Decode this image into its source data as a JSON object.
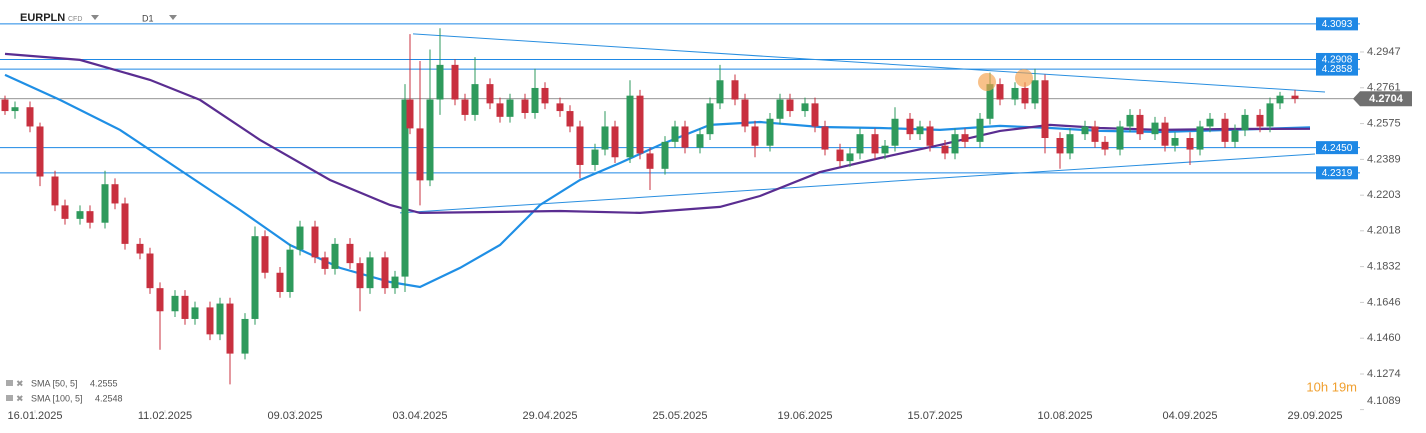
{
  "chart_data": {
    "type": "candlestick",
    "symbol": "EURPLN",
    "instrument": "CFD",
    "timeframe": "D1",
    "countdown": "10h 19m",
    "up_color": "#2e9a5c",
    "down_color": "#c8303f",
    "grid": false,
    "xlim": [
      -7,
      265
    ],
    "ylim": [
      4.1087,
      4.3217
    ],
    "xticks": [
      {
        "value": 0,
        "label": "16.01.2025"
      },
      {
        "value": 26,
        "label": "11.02.2025"
      },
      {
        "value": 52,
        "label": "09.03.2025"
      },
      {
        "value": 77,
        "label": "03.04.2025"
      },
      {
        "value": 103,
        "label": "29.04.2025"
      },
      {
        "value": 129,
        "label": "25.05.2025"
      },
      {
        "value": 154,
        "label": "19.06.2025"
      },
      {
        "value": 180,
        "label": "15.07.2025"
      },
      {
        "value": 206,
        "label": "10.08.2025"
      },
      {
        "value": 231,
        "label": "04.09.2025"
      },
      {
        "value": 256,
        "label": "29.09.2025"
      }
    ],
    "yticks": [
      4.2947,
      {
        "value": 4.2761,
        "label": "4.2761"
      },
      4.2575,
      4.2389,
      4.2203,
      4.2018,
      4.1832,
      4.1646,
      {
        "value": 4.146,
        "label": "4.1460"
      },
      4.1274,
      4.1089
    ],
    "levels": [
      4.3093,
      4.2908,
      4.2858,
      {
        "value": 4.245,
        "label": "4.2450"
      },
      4.2319
    ],
    "level_color": "#1e88e5",
    "current_price": 4.2704,
    "current_color": "#707070",
    "trendlines": [
      {
        "x": [
          75.6,
          258
        ],
        "values": [
          4.3041,
          4.2739
        ]
      },
      {
        "x": [
          73,
          256
        ],
        "values": [
          4.2111,
          4.2417
        ]
      }
    ],
    "highlights": [
      {
        "x": 190.4,
        "value": 4.2791
      },
      {
        "x": 197.8,
        "value": 4.2812
      }
    ],
    "highlight_color": "#f5a04a",
    "x": [
      -6,
      -4,
      -1,
      1,
      4,
      6,
      9,
      11,
      14,
      16,
      18,
      21,
      23,
      25,
      28,
      30,
      32,
      35,
      37,
      39,
      42,
      44,
      46,
      49,
      51,
      53,
      56,
      58,
      60,
      63,
      65,
      67,
      70,
      72,
      74,
      75,
      77,
      79,
      81,
      84,
      86,
      88,
      91,
      93,
      95,
      98,
      100,
      102,
      105,
      107,
      109,
      112,
      114,
      116,
      119,
      121,
      123,
      126,
      128,
      130,
      133,
      135,
      137,
      140,
      142,
      144,
      147,
      149,
      151,
      154,
      156,
      158,
      161,
      163,
      165,
      168,
      170,
      172,
      175,
      177,
      179,
      182,
      184,
      186,
      189,
      191,
      193,
      196,
      198,
      200,
      202,
      205,
      207,
      210,
      212,
      214,
      217,
      219,
      221,
      224,
      226,
      228,
      231,
      233,
      235,
      238,
      240,
      242,
      245,
      247,
      249,
      252
    ],
    "open": [
      4.27,
      4.264,
      4.266,
      4.256,
      4.23,
      4.215,
      4.208,
      4.212,
      4.206,
      4.226,
      4.216,
      4.195,
      4.19,
      4.172,
      4.16,
      4.168,
      4.156,
      4.162,
      4.148,
      4.164,
      4.138,
      4.156,
      4.199,
      4.18,
      4.17,
      4.192,
      4.204,
      4.188,
      4.182,
      4.195,
      4.185,
      4.172,
      4.188,
      4.172,
      4.178,
      4.27,
      4.255,
      4.228,
      4.27,
      4.288,
      4.27,
      4.262,
      4.278,
      4.268,
      4.261,
      4.27,
      4.263,
      4.276,
      4.268,
      4.264,
      4.256,
      4.236,
      4.244,
      4.256,
      4.24,
      4.272,
      4.242,
      4.234,
      4.248,
      4.256,
      4.245,
      4.252,
      4.268,
      4.28,
      4.27,
      4.256,
      4.246,
      4.26,
      4.27,
      4.264,
      4.268,
      4.256,
      4.244,
      4.238,
      4.242,
      4.252,
      4.242,
      4.246,
      4.26,
      4.252,
      4.256,
      4.246,
      4.242,
      4.252,
      4.248,
      4.26,
      4.278,
      4.27,
      4.276,
      4.268,
      4.28,
      4.25,
      4.242,
      4.252,
      4.256,
      4.248,
      4.244,
      4.256,
      4.262,
      4.252,
      4.258,
      4.246,
      4.25,
      4.244,
      4.256,
      4.26,
      4.248,
      4.254,
      4.262,
      4.256,
      4.268,
      4.272
    ],
    "high": [
      4.272,
      4.269,
      4.269,
      4.258,
      4.233,
      4.218,
      4.215,
      4.215,
      4.233,
      4.229,
      4.219,
      4.198,
      4.193,
      4.175,
      4.171,
      4.171,
      4.165,
      4.165,
      4.167,
      4.167,
      4.159,
      4.204,
      4.202,
      4.183,
      4.195,
      4.207,
      4.207,
      4.191,
      4.198,
      4.198,
      4.188,
      4.191,
      4.191,
      4.181,
      4.278,
      4.304,
      4.29,
      4.296,
      4.307,
      4.291,
      4.273,
      4.292,
      4.281,
      4.271,
      4.273,
      4.273,
      4.286,
      4.279,
      4.271,
      4.267,
      4.259,
      4.247,
      4.264,
      4.259,
      4.28,
      4.275,
      4.245,
      4.251,
      4.259,
      4.259,
      4.255,
      4.271,
      4.288,
      4.283,
      4.273,
      4.259,
      4.263,
      4.273,
      4.273,
      4.271,
      4.271,
      4.259,
      4.247,
      4.245,
      4.255,
      4.255,
      4.249,
      4.266,
      4.263,
      4.259,
      4.259,
      4.249,
      4.255,
      4.255,
      4.263,
      4.284,
      4.281,
      4.279,
      4.279,
      4.286,
      4.283,
      4.253,
      4.255,
      4.259,
      4.259,
      4.251,
      4.259,
      4.265,
      4.265,
      4.261,
      4.261,
      4.253,
      4.253,
      4.259,
      4.263,
      4.263,
      4.257,
      4.265,
      4.265,
      4.271,
      4.274,
      4.275
    ],
    "low": [
      4.262,
      4.26,
      4.253,
      4.225,
      4.212,
      4.205,
      4.205,
      4.203,
      4.203,
      4.213,
      4.192,
      4.187,
      4.169,
      4.14,
      4.157,
      4.153,
      4.153,
      4.145,
      4.145,
      4.122,
      4.135,
      4.153,
      4.177,
      4.167,
      4.167,
      4.189,
      4.185,
      4.179,
      4.179,
      4.182,
      4.16,
      4.169,
      4.169,
      4.169,
      4.17,
      4.252,
      4.215,
      4.225,
      4.262,
      4.267,
      4.259,
      4.259,
      4.265,
      4.258,
      4.258,
      4.26,
      4.26,
      4.265,
      4.261,
      4.253,
      4.229,
      4.233,
      4.241,
      4.237,
      4.237,
      4.239,
      4.223,
      4.231,
      4.245,
      4.242,
      4.242,
      4.249,
      4.265,
      4.267,
      4.253,
      4.24,
      4.243,
      4.257,
      4.261,
      4.261,
      4.253,
      4.241,
      4.235,
      4.235,
      4.239,
      4.239,
      4.239,
      4.243,
      4.249,
      4.249,
      4.243,
      4.239,
      4.239,
      4.245,
      4.245,
      4.257,
      4.267,
      4.267,
      4.265,
      4.265,
      4.242,
      4.234,
      4.239,
      4.249,
      4.245,
      4.241,
      4.241,
      4.253,
      4.249,
      4.249,
      4.243,
      4.243,
      4.236,
      4.241,
      4.253,
      4.245,
      4.245,
      4.251,
      4.253,
      4.253,
      4.265,
      4.268
    ],
    "close": [
      4.264,
      4.266,
      4.256,
      4.23,
      4.215,
      4.208,
      4.212,
      4.206,
      4.226,
      4.216,
      4.195,
      4.19,
      4.172,
      4.16,
      4.168,
      4.156,
      4.162,
      4.148,
      4.164,
      4.138,
      4.156,
      4.199,
      4.18,
      4.17,
      4.192,
      4.204,
      4.188,
      4.182,
      4.195,
      4.185,
      4.172,
      4.188,
      4.172,
      4.178,
      4.27,
      4.255,
      4.228,
      4.27,
      4.288,
      4.27,
      4.262,
      4.278,
      4.268,
      4.261,
      4.27,
      4.263,
      4.276,
      4.268,
      4.264,
      4.256,
      4.236,
      4.244,
      4.256,
      4.24,
      4.272,
      4.242,
      4.234,
      4.248,
      4.256,
      4.245,
      4.252,
      4.268,
      4.28,
      4.27,
      4.256,
      4.246,
      4.26,
      4.27,
      4.264,
      4.268,
      4.256,
      4.244,
      4.238,
      4.242,
      4.252,
      4.242,
      4.246,
      4.26,
      4.252,
      4.256,
      4.246,
      4.242,
      4.252,
      4.248,
      4.26,
      4.278,
      4.27,
      4.276,
      4.268,
      4.28,
      4.25,
      4.242,
      4.252,
      4.256,
      4.248,
      4.244,
      4.256,
      4.262,
      4.252,
      4.258,
      4.246,
      4.25,
      4.244,
      4.256,
      4.26,
      4.248,
      4.254,
      4.262,
      4.256,
      4.268,
      4.272,
      4.2704
    ],
    "series": [
      {
        "name": "SMA [50, 5]",
        "last": 4.2555,
        "color": "#1f8fe5",
        "x": [
          -6,
          5,
          17,
          29,
          41,
          51,
          61,
          71,
          77,
          85,
          93,
          101,
          109,
          117,
          125,
          135,
          145,
          157,
          169,
          181,
          193,
          203,
          213,
          225,
          239,
          255
        ],
        "values": [
          4.2828,
          4.2698,
          4.2542,
          4.2334,
          4.2126,
          4.1944,
          4.1825,
          4.1752,
          4.1726,
          4.1825,
          4.1944,
          4.2152,
          4.2282,
          4.237,
          4.2464,
          4.2568,
          4.2583,
          4.2557,
          4.2552,
          4.2542,
          4.2563,
          4.2552,
          4.2537,
          4.2531,
          4.2542,
          4.2555
        ]
      },
      {
        "name": "SMA [100, 5]",
        "last": 4.2548,
        "color": "#5a2d91",
        "x": [
          -6,
          9,
          23,
          33,
          45,
          59,
          71,
          77,
          93,
          105,
          121,
          137,
          145,
          157,
          169,
          181,
          193,
          203,
          213,
          225,
          239,
          255
        ],
        "values": [
          4.2937,
          4.2906,
          4.2802,
          4.2698,
          4.249,
          4.2282,
          4.2152,
          4.2111,
          4.2116,
          4.2121,
          4.2111,
          4.2142,
          4.2199,
          4.2323,
          4.2396,
          4.2464,
          4.2537,
          4.2568,
          4.2552,
          4.2542,
          4.2547,
          4.2548
        ]
      }
    ]
  }
}
